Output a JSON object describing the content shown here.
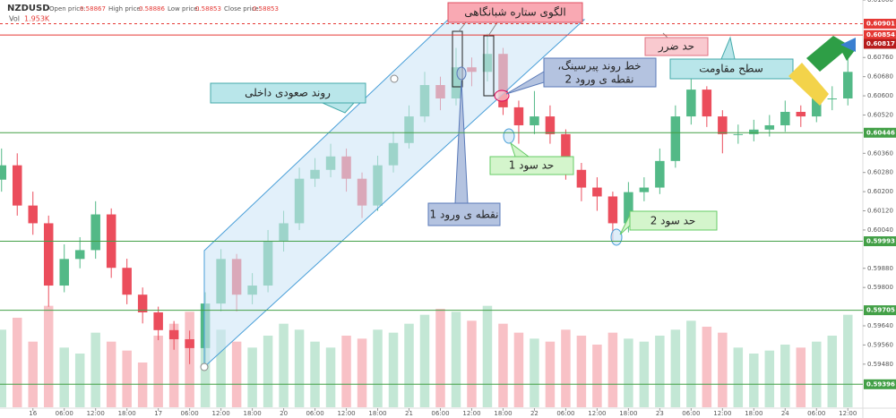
{
  "header": {
    "symbol": "NZDUSD",
    "open_label": "Open price:",
    "open": "0.58867",
    "high_label": "High price:",
    "high": "0.58886",
    "low_label": "Low price:",
    "low": "0.58853",
    "close_label": "Close price:",
    "close": "0.58853",
    "vol_label": "Vol",
    "vol": "1.953K"
  },
  "chart_data": {
    "type": "candlestick",
    "open": [
      0.6025,
      0.6031,
      0.60142,
      0.60068,
      0.59808,
      0.59919,
      0.59956,
      0.60105,
      0.59882,
      0.5977,
      0.59696,
      0.59622,
      0.59584,
      0.59547,
      0.59733,
      0.59919,
      0.5977,
      0.59808,
      0.59994,
      0.60068,
      0.60254,
      0.60291,
      0.60347,
      0.60254,
      0.60142,
      0.6031,
      0.60403,
      0.60514,
      0.60645,
      0.60589,
      0.60719,
      0.607,
      0.60775,
      0.60552,
      0.60477,
      0.60514,
      0.6044,
      0.60291,
      0.60217,
      0.6018,
      0.60068,
      0.60198,
      0.60217,
      0.60328,
      0.60514,
      0.60626,
      0.60514,
      0.6044,
      0.6044,
      0.60459,
      0.60477,
      0.60533,
      0.60514,
      0.60589,
      0.60589
    ],
    "high": [
      0.6038,
      0.6036,
      0.602,
      0.601,
      0.5998,
      0.6001,
      0.6016,
      0.6013,
      0.5992,
      0.598,
      0.5972,
      0.5966,
      0.5962,
      0.5978,
      0.5996,
      0.5994,
      0.5986,
      0.6004,
      0.6012,
      0.603,
      0.6034,
      0.604,
      0.6038,
      0.6028,
      0.6035,
      0.6045,
      0.6056,
      0.607,
      0.6068,
      0.608,
      0.6076,
      0.6086,
      0.608,
      0.6058,
      0.6062,
      0.6056,
      0.6046,
      0.6032,
      0.6026,
      0.602,
      0.6024,
      0.6026,
      0.6038,
      0.6056,
      0.6067,
      0.6064,
      0.6054,
      0.6048,
      0.605,
      0.6052,
      0.6058,
      0.6056,
      0.6063,
      0.6064,
      0.6076
    ],
    "low": [
      0.602,
      0.601,
      0.6002,
      0.5972,
      0.5978,
      0.5988,
      0.5992,
      0.5984,
      0.5973,
      0.5965,
      0.5958,
      0.5954,
      0.5948,
      0.5947,
      0.597,
      0.597,
      0.5973,
      0.5978,
      0.5995,
      0.6004,
      0.6022,
      0.6026,
      0.602,
      0.6009,
      0.6012,
      0.6028,
      0.6038,
      0.6049,
      0.6054,
      0.6056,
      0.6064,
      0.6066,
      0.6052,
      0.604,
      0.6044,
      0.604,
      0.6025,
      0.6016,
      0.6012,
      0.5999,
      0.6003,
      0.6016,
      0.6019,
      0.603,
      0.6048,
      0.6047,
      0.6036,
      0.604,
      0.6041,
      0.6043,
      0.6045,
      0.6047,
      0.6049,
      0.6054,
      0.6056
    ],
    "close": [
      0.6031,
      0.60142,
      0.60068,
      0.59808,
      0.59919,
      0.59956,
      0.60105,
      0.59882,
      0.5977,
      0.59696,
      0.59622,
      0.59584,
      0.59547,
      0.59733,
      0.59919,
      0.5977,
      0.59808,
      0.59994,
      0.60068,
      0.60254,
      0.60291,
      0.60347,
      0.60254,
      0.60142,
      0.6031,
      0.60403,
      0.60514,
      0.60645,
      0.60589,
      0.60719,
      0.607,
      0.60775,
      0.60552,
      0.60477,
      0.60514,
      0.6044,
      0.60291,
      0.60217,
      0.6018,
      0.60068,
      0.60198,
      0.60217,
      0.60328,
      0.60514,
      0.60626,
      0.60514,
      0.6044,
      0.6044,
      0.60459,
      0.60477,
      0.60533,
      0.60514,
      0.60589,
      0.60589,
      0.607
    ],
    "up_color": "#53b987",
    "down_color": "#eb4d5c",
    "xlim": [
      -0.1,
      54.9
    ],
    "xticks": [
      {
        "value": 2,
        "label": "16"
      },
      {
        "value": 4,
        "label": "06:00"
      },
      {
        "value": 6,
        "label": "12:00"
      },
      {
        "value": 8,
        "label": "18:00"
      },
      {
        "value": 10,
        "label": "17"
      },
      {
        "value": 12,
        "label": "06:00"
      },
      {
        "value": 14,
        "label": "12:00"
      },
      {
        "value": 16,
        "label": "18:00"
      },
      {
        "value": 18,
        "label": "20"
      },
      {
        "value": 20,
        "label": "06:00"
      },
      {
        "value": 22,
        "label": "12:00"
      },
      {
        "value": 24,
        "label": "18:00"
      },
      {
        "value": 26,
        "label": "21"
      },
      {
        "value": 28,
        "label": "06:00"
      },
      {
        "value": 30,
        "label": "12:00"
      },
      {
        "value": 32,
        "label": "18:00"
      },
      {
        "value": 34,
        "label": "22"
      },
      {
        "value": 36,
        "label": "06:00"
      },
      {
        "value": 38,
        "label": "12:00"
      },
      {
        "value": 40,
        "label": "18:00"
      },
      {
        "value": 42,
        "label": "23"
      },
      {
        "value": 44,
        "label": "06:00"
      },
      {
        "value": 46,
        "label": "12:00"
      },
      {
        "value": 48,
        "label": "18:00"
      },
      {
        "value": 50,
        "label": "24"
      },
      {
        "value": 52,
        "label": "06:00"
      },
      {
        "value": 54,
        "label": "12:00"
      }
    ],
    "ylim": [
      0.593,
      0.61
    ],
    "yticks": [
      {
        "value": 0.5948,
        "label": "0.59480"
      },
      {
        "value": 0.5956,
        "label": "0.59560"
      },
      {
        "value": 0.5964,
        "label": "0.59640"
      },
      {
        "value": 0.598,
        "label": "0.59800"
      },
      {
        "value": 0.5988,
        "label": "0.59880"
      },
      {
        "value": 0.6004,
        "label": "0.60040"
      },
      {
        "value": 0.6012,
        "label": "0.60120"
      },
      {
        "value": 0.602,
        "label": "0.60200"
      },
      {
        "value": 0.6028,
        "label": "0.60280"
      },
      {
        "value": 0.6036,
        "label": "0.60360"
      },
      {
        "value": 0.6052,
        "label": "0.60520"
      },
      {
        "value": 0.606,
        "label": "0.60600"
      },
      {
        "value": 0.6068,
        "label": "0.60680"
      },
      {
        "value": 0.6076,
        "label": "0.60760"
      },
      {
        "value": 0.61,
        "label": "0.61000"
      }
    ],
    "grid": false,
    "volume": {
      "values": [
        2600,
        3000,
        2200,
        3400,
        2000,
        1800,
        2500,
        2200,
        1900,
        1500,
        2400,
        2800,
        3200,
        3000,
        2600,
        2200,
        2000,
        2400,
        2800,
        2600,
        2200,
        2000,
        2400,
        2300,
        2600,
        2500,
        2800,
        3100,
        3300,
        3200,
        2900,
        3400,
        2800,
        2500,
        2300,
        2200,
        2600,
        2400,
        2100,
        2500,
        2300,
        2200,
        2400,
        2600,
        2900,
        2700,
        2500,
        2000,
        1800,
        1900,
        2100,
        2000,
        2200,
        2400,
        3100
      ],
      "ylim": [
        0,
        6000
      ]
    },
    "levels": [
      {
        "value": 0.60901,
        "color": "#e53935",
        "style": "dashed"
      },
      {
        "value": 0.60854,
        "color": "#e53935",
        "style": "solid"
      },
      {
        "value": 0.60817,
        "color": "#b71c1c",
        "style": "none"
      },
      {
        "value": 0.60446,
        "color": "#43a047",
        "style": "solid"
      },
      {
        "value": 0.59993,
        "color": "#43a047",
        "style": "solid"
      },
      {
        "value": 0.59705,
        "color": "#43a047",
        "style": "solid"
      },
      {
        "value": 0.59396,
        "color": "#43a047",
        "style": "solid"
      }
    ]
  },
  "annotations": {
    "evening_star": "الگوی ستاره شبانگاهی",
    "stop_loss": "حد ضرر",
    "resistance": "سطح مقاومت",
    "inner_uptrend": "روند صعودی داخلی",
    "piercing_line_1": "،خط روند پیرسینگ",
    "piercing_line_2": "نقطه ی ورود 2",
    "entry_1": "نقطه ی ورود 1",
    "take_profit_1": "حد سود 1",
    "take_profit_2": "حد سود 2"
  }
}
